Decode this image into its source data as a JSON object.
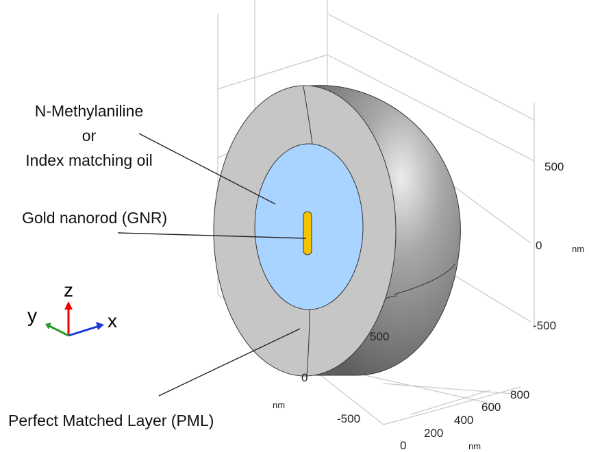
{
  "annotations": {
    "medium_line1": "N-Methylaniline",
    "medium_line2": "or",
    "medium_line3": "Index matching oil",
    "gnr": "Gold nanorod (GNR)",
    "pml": "Perfect Matched Layer (PML)"
  },
  "triad": {
    "z": "z",
    "y": "y",
    "x": "x"
  },
  "z_axis": {
    "ticks": [
      "500",
      "0",
      "-500"
    ],
    "unit": "nm"
  },
  "y_axis": {
    "ticks": [
      "500",
      "0",
      "-500"
    ],
    "unit": "nm"
  },
  "x_axis": {
    "ticks": [
      "800",
      "600",
      "400",
      "200",
      "0"
    ],
    "unit": "nm"
  }
}
